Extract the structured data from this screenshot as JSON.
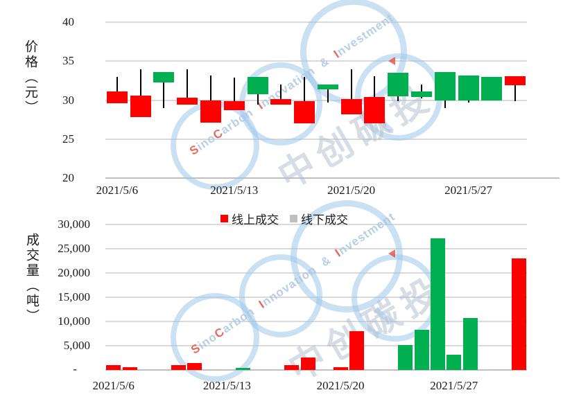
{
  "colors": {
    "up": "#00B050",
    "down": "#FF0000",
    "online_bar": "#FF0000",
    "offline_bar": "#00B050",
    "online_legend_swatch": "#FF0000",
    "offline_legend_swatch": "#BFBFBF",
    "gridline": "#D9D9D9",
    "axis_line": "#BFBFBF",
    "wick": "#000000"
  },
  "price_chart": {
    "y_axis_title": "价格（元）",
    "y_ticks": [
      "40",
      "35",
      "30",
      "25",
      "20"
    ]
  },
  "volume_chart": {
    "y_axis_title": "成交量（吨）",
    "y_ticks": [
      "30,000",
      "25,000",
      "20,000",
      "15,000",
      "10,000",
      "5,000"
    ],
    "zero_tick": "-"
  },
  "legend": {
    "online_label": "线上成交",
    "offline_label": "线下成交"
  },
  "watermark": {
    "en_s": "S",
    "en_ino": "ino",
    "en_c": "C",
    "en_arbon": "arbon",
    "en_i1": "I",
    "en_nnovation": "nnovation",
    "amp": "&",
    "en_i2": "I",
    "en_nvestment": "nvestment",
    "brand_cn": "中创碳投"
  },
  "chart_data": [
    {
      "type": "candlestick",
      "title": "",
      "ylabel": "价格（元）",
      "ylim": [
        20,
        40
      ],
      "grid": true,
      "slot_count": 18,
      "x_axis": {
        "labels": [
          "2021/5/6",
          "2021/5/13",
          "2021/5/20",
          "2021/5/27"
        ],
        "label_slots": [
          0,
          5,
          10,
          15
        ]
      },
      "candles": [
        {
          "date": "2021/5/6",
          "open": 31.1,
          "high": 33.0,
          "low": 29.6,
          "close": 29.6,
          "dir": "down"
        },
        {
          "date": "2021/5/7",
          "open": 30.6,
          "high": 34.0,
          "low": 27.8,
          "close": 27.8,
          "dir": "down"
        },
        {
          "date": "2021/5/10",
          "open": 32.3,
          "high": 33.6,
          "low": 29.0,
          "close": 33.6,
          "dir": "up"
        },
        {
          "date": "2021/5/11",
          "open": 30.3,
          "high": 34.0,
          "low": 29.4,
          "close": 29.4,
          "dir": "down"
        },
        {
          "date": "2021/5/12",
          "open": 30.0,
          "high": 33.2,
          "low": 27.1,
          "close": 27.1,
          "dir": "down"
        },
        {
          "date": "2021/5/13",
          "open": 29.9,
          "high": 32.9,
          "low": 28.7,
          "close": 28.7,
          "dir": "down"
        },
        {
          "date": "2021/5/14",
          "open": 30.8,
          "high": 33.0,
          "low": 29.4,
          "close": 33.0,
          "dir": "up"
        },
        {
          "date": "2021/5/17",
          "open": 30.1,
          "high": 32.0,
          "low": 29.4,
          "close": 29.4,
          "dir": "down"
        },
        {
          "date": "2021/5/18",
          "open": 29.9,
          "high": 33.0,
          "low": 27.0,
          "close": 27.0,
          "dir": "down"
        },
        {
          "date": "2021/5/19",
          "open": 31.4,
          "high": 32.0,
          "low": 29.7,
          "close": 32.0,
          "dir": "up"
        },
        {
          "date": "2021/5/20",
          "open": 30.1,
          "high": 34.0,
          "low": 28.2,
          "close": 28.2,
          "dir": "down"
        },
        {
          "date": "2021/5/21",
          "open": 30.4,
          "high": 33.1,
          "low": 27.0,
          "close": 27.0,
          "dir": "down"
        },
        {
          "date": "2021/5/24",
          "open": 30.5,
          "high": 33.5,
          "low": 29.9,
          "close": 33.5,
          "dir": "up"
        },
        {
          "date": "2021/5/25",
          "open": 30.4,
          "high": 32.0,
          "low": 30.2,
          "close": 31.1,
          "dir": "up"
        },
        {
          "date": "2021/5/26",
          "open": 30.0,
          "high": 33.6,
          "low": 29.0,
          "close": 33.6,
          "dir": "up"
        },
        {
          "date": "2021/5/27",
          "open": 30.0,
          "high": 33.2,
          "low": 29.7,
          "close": 33.2,
          "dir": "up"
        },
        {
          "date": "2021/5/28",
          "open": 30.0,
          "high": 33.0,
          "low": 30.0,
          "close": 33.0,
          "dir": "up"
        },
        {
          "date": "2021/5/31",
          "open": 33.1,
          "high": 33.1,
          "low": 29.9,
          "close": 31.9,
          "dir": "down"
        }
      ]
    },
    {
      "type": "bar",
      "title": "",
      "ylabel": "成交量（吨）",
      "ylim": [
        0,
        30000
      ],
      "grid": true,
      "total_day_slots": 26,
      "x_axis": {
        "labels": [
          "2021/5/6",
          "2021/5/13",
          "2021/5/20",
          "2021/5/27"
        ],
        "label_day_offsets": [
          0,
          7,
          14,
          21
        ]
      },
      "series_legend": [
        {
          "name": "线上成交",
          "swatch": "#FF0000"
        },
        {
          "name": "线下成交",
          "swatch": "#BFBFBF"
        }
      ],
      "bars": [
        {
          "date": "2021/5/6",
          "day_offset": 0,
          "series": "线上成交",
          "value": 950
        },
        {
          "date": "2021/5/7",
          "day_offset": 1,
          "series": "线上成交",
          "value": 600
        },
        {
          "date": "2021/5/10",
          "day_offset": 4,
          "series": "线上成交",
          "value": 950
        },
        {
          "date": "2021/5/11",
          "day_offset": 5,
          "series": "线上成交",
          "value": 1400
        },
        {
          "date": "2021/5/14",
          "day_offset": 8,
          "series": "线下成交",
          "value": 400
        },
        {
          "date": "2021/5/17",
          "day_offset": 11,
          "series": "线上成交",
          "value": 950
        },
        {
          "date": "2021/5/18",
          "day_offset": 12,
          "series": "线上成交",
          "value": 2600
        },
        {
          "date": "2021/5/20",
          "day_offset": 14,
          "series": "线上成交",
          "value": 600
        },
        {
          "date": "2021/5/21",
          "day_offset": 15,
          "series": "线上成交",
          "value": 8000
        },
        {
          "date": "2021/5/24",
          "day_offset": 18,
          "series": "线下成交",
          "value": 5200
        },
        {
          "date": "2021/5/25",
          "day_offset": 19,
          "series": "线下成交",
          "value": 8300
        },
        {
          "date": "2021/5/26",
          "day_offset": 20,
          "series": "线下成交",
          "value": 27200
        },
        {
          "date": "2021/5/27",
          "day_offset": 21,
          "series": "线下成交",
          "value": 3100
        },
        {
          "date": "2021/5/28",
          "day_offset": 22,
          "series": "线下成交",
          "value": 10700
        },
        {
          "date": "2021/5/31",
          "day_offset": 25,
          "series": "线上成交",
          "value": 23000
        }
      ]
    }
  ]
}
